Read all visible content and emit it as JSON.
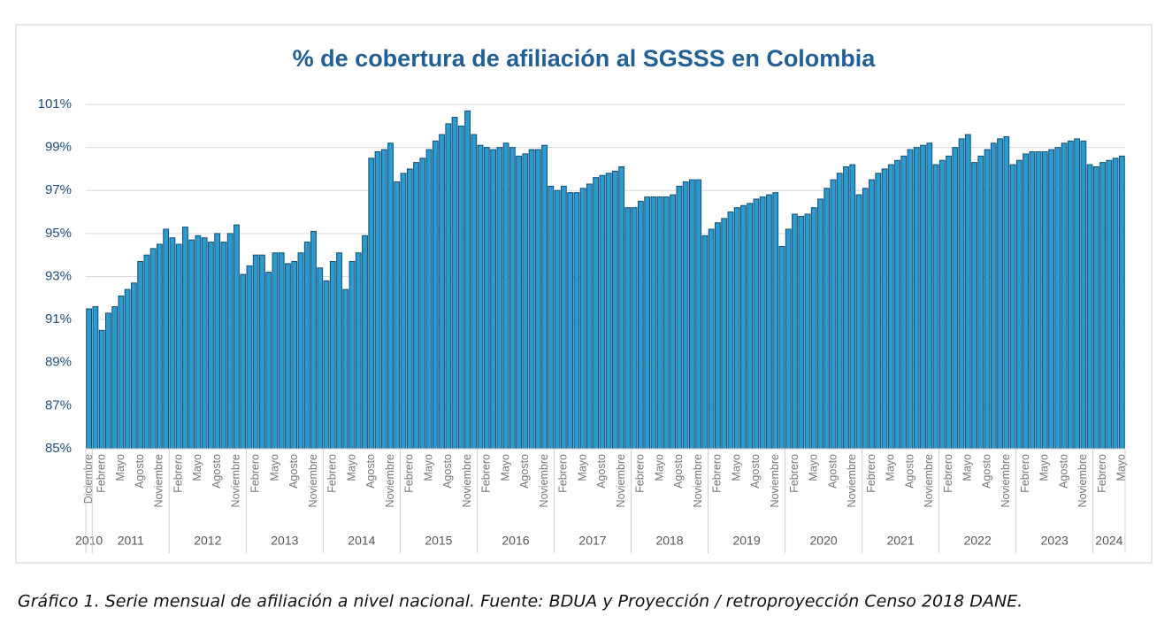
{
  "chart_data": {
    "type": "bar",
    "title": "% de cobertura de afiliación al SGSSS en Colombia",
    "caption": "Gráfico 1. Serie mensual de afiliación a nivel nacional.  Fuente: BDUA y Proyección / retroproyección Censo 2018 DANE.",
    "color": "#2b9ad0",
    "edge_color": "#124f72",
    "grid": true,
    "ylim": [
      85,
      101
    ],
    "yticks": [
      {
        "value": 85,
        "label": "85%"
      },
      {
        "value": 87,
        "label": "87%"
      },
      {
        "value": 89,
        "label": "89%"
      },
      {
        "value": 91,
        "label": "91%"
      },
      {
        "value": 93,
        "label": "93%"
      },
      {
        "value": 95,
        "label": "95%"
      },
      {
        "value": 97,
        "label": "97%"
      },
      {
        "value": 99,
        "label": "99%"
      },
      {
        "value": 101,
        "label": "101%"
      }
    ],
    "year_groups": [
      {
        "label": "2010",
        "count": 1
      },
      {
        "label": "2011",
        "count": 12
      },
      {
        "label": "2012",
        "count": 12
      },
      {
        "label": "2013",
        "count": 12
      },
      {
        "label": "2014",
        "count": 12
      },
      {
        "label": "2015",
        "count": 12
      },
      {
        "label": "2016",
        "count": 12
      },
      {
        "label": "2017",
        "count": 12
      },
      {
        "label": "2018",
        "count": 12
      },
      {
        "label": "2019",
        "count": 12
      },
      {
        "label": "2020",
        "count": 12
      },
      {
        "label": "2021",
        "count": 12
      },
      {
        "label": "2022",
        "count": 12
      },
      {
        "label": "2023",
        "count": 12
      },
      {
        "label": "2024",
        "count": 5
      }
    ],
    "categories": [
      "Diciembre",
      null,
      "Febrero",
      null,
      null,
      "Mayo",
      null,
      null,
      "Agosto",
      null,
      null,
      "Noviembre",
      null,
      null,
      "Febrero",
      null,
      null,
      "Mayo",
      null,
      null,
      "Agosto",
      null,
      null,
      "Noviembre",
      null,
      null,
      "Febrero",
      null,
      null,
      "Mayo",
      null,
      null,
      "Agosto",
      null,
      null,
      "Noviembre",
      null,
      null,
      "Febrero",
      null,
      null,
      "Mayo",
      null,
      null,
      "Agosto",
      null,
      null,
      "Noviembre",
      null,
      null,
      "Febrero",
      null,
      null,
      "Mayo",
      null,
      null,
      "Agosto",
      null,
      null,
      "Noviembre",
      null,
      null,
      "Febrero",
      null,
      null,
      "Mayo",
      null,
      null,
      "Agosto",
      null,
      null,
      "Noviembre",
      null,
      null,
      "Febrero",
      null,
      null,
      "Mayo",
      null,
      null,
      "Agosto",
      null,
      null,
      "Noviembre",
      null,
      null,
      "Febrero",
      null,
      null,
      "Mayo",
      null,
      null,
      "Agosto",
      null,
      null,
      "Noviembre",
      null,
      null,
      "Febrero",
      null,
      null,
      "Mayo",
      null,
      null,
      "Agosto",
      null,
      null,
      "Noviembre",
      null,
      null,
      "Febrero",
      null,
      null,
      "Mayo",
      null,
      null,
      "Agosto",
      null,
      null,
      "Noviembre",
      null,
      null,
      "Febrero",
      null,
      null,
      "Mayo",
      null,
      null,
      "Agosto",
      null,
      null,
      "Noviembre",
      null,
      null,
      "Febrero",
      null,
      null,
      "Mayo",
      null,
      null,
      "Agosto",
      null,
      null,
      "Noviembre",
      null,
      null,
      "Febrero",
      null,
      null,
      "Mayo",
      null,
      null,
      "Agosto",
      null,
      null,
      "Noviembre",
      null,
      null,
      "Febrero",
      null,
      null,
      "Mayo"
    ],
    "values": [
      91.5,
      91.6,
      90.5,
      91.3,
      91.6,
      92.1,
      92.4,
      92.7,
      93.7,
      94.0,
      94.3,
      94.5,
      95.2,
      94.8,
      94.5,
      95.3,
      94.7,
      94.9,
      94.8,
      94.6,
      95.0,
      94.6,
      95.0,
      95.4,
      93.1,
      93.5,
      94.0,
      94.0,
      93.2,
      94.1,
      94.1,
      93.6,
      93.7,
      94.1,
      94.6,
      95.1,
      93.4,
      92.8,
      93.7,
      94.1,
      92.4,
      93.7,
      94.1,
      94.9,
      98.5,
      98.8,
      98.9,
      99.2,
      97.4,
      97.8,
      98.0,
      98.3,
      98.5,
      98.9,
      99.3,
      99.6,
      100.1,
      100.4,
      100.0,
      100.7,
      99.6,
      99.1,
      99.0,
      98.9,
      99.0,
      99.2,
      99.0,
      98.6,
      98.7,
      98.9,
      98.9,
      99.1,
      97.2,
      97.0,
      97.2,
      96.9,
      96.9,
      97.1,
      97.3,
      97.6,
      97.7,
      97.8,
      97.9,
      98.1,
      96.2,
      96.2,
      96.5,
      96.7,
      96.7,
      96.7,
      96.7,
      96.8,
      97.2,
      97.4,
      97.5,
      97.5,
      94.9,
      95.2,
      95.5,
      95.7,
      96.0,
      96.2,
      96.3,
      96.4,
      96.6,
      96.7,
      96.8,
      96.9,
      94.4,
      95.2,
      95.9,
      95.8,
      95.9,
      96.2,
      96.6,
      97.1,
      97.5,
      97.8,
      98.1,
      98.2,
      96.8,
      97.1,
      97.5,
      97.8,
      98.0,
      98.2,
      98.4,
      98.6,
      98.9,
      99.0,
      99.1,
      99.2,
      98.2,
      98.4,
      98.6,
      99.0,
      99.4,
      99.6,
      98.3,
      98.6,
      98.9,
      99.2,
      99.4,
      99.5,
      98.2,
      98.4,
      98.7,
      98.8,
      98.8,
      98.8,
      98.9,
      99.0,
      99.2,
      99.3,
      99.4,
      99.3,
      98.2,
      98.1,
      98.3,
      98.4,
      98.5,
      98.6
    ]
  }
}
